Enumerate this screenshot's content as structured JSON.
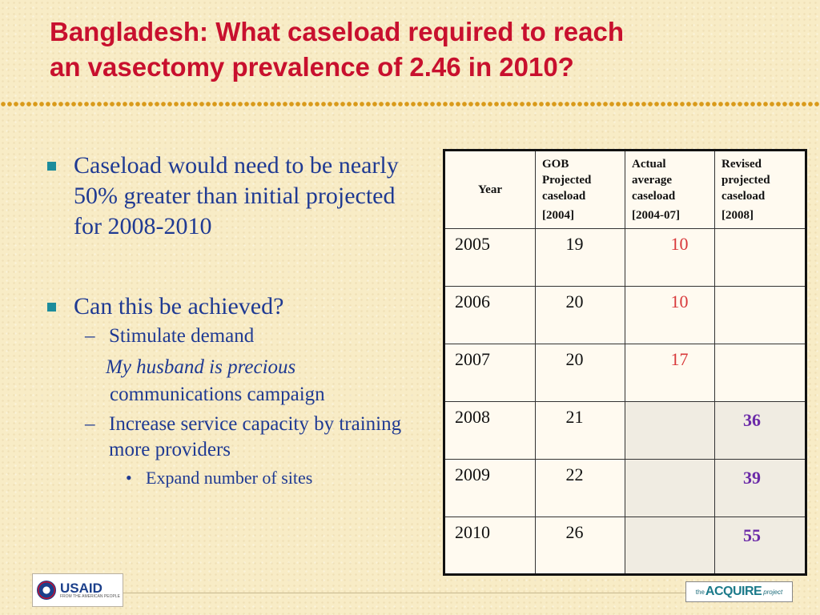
{
  "slide": {
    "title_line1": "Bangladesh: What caseload required to reach",
    "title_line2": "an vasectomy prevalence of 2.46 in 2010?"
  },
  "bullets": {
    "b1": "Caseload would need to be nearly 50% greater than initial projected for 2008-2010",
    "b2": "Can this be achieved?",
    "b2_sub1": "Stimulate demand",
    "b2_sub1_italic": "My husband is precious",
    "b2_sub1_rest": "communications campaign",
    "b2_sub2": "Increase service capacity by training more providers",
    "b2_sub2_sub": "Expand number of sites",
    "dash_glyph": "–",
    "dot_glyph": "•"
  },
  "table": {
    "headers": {
      "year": "Year",
      "gob": "GOB Projected caseload",
      "gob_sub": "[2004]",
      "actual": "Actual average caseload",
      "actual_sub": "[2004-07]",
      "revised": "Revised projected caseload",
      "revised_sub": "[2008]"
    },
    "rows": [
      {
        "year": "2005",
        "gob": "19",
        "actual": "10",
        "revised": ""
      },
      {
        "year": "2006",
        "gob": "20",
        "actual": "10",
        "revised": ""
      },
      {
        "year": "2007",
        "gob": "20",
        "actual": "17",
        "revised": ""
      },
      {
        "year": "2008",
        "gob": "21",
        "actual": "",
        "revised": "36"
      },
      {
        "year": "2009",
        "gob": "22",
        "actual": "",
        "revised": "39"
      },
      {
        "year": "2010",
        "gob": "26",
        "actual": "",
        "revised": "55"
      }
    ]
  },
  "logos": {
    "usaid": "USAID",
    "usaid_sub": "FROM THE AMERICAN PEOPLE",
    "acquire_the": "the",
    "acquire_main": "ACQUIRE",
    "acquire_project": "project"
  },
  "colors": {
    "title": "#c8102e",
    "body_text": "#1f3a93",
    "bullet_square": "#1c8c9c",
    "actual_values": "#d8383a",
    "revised_values": "#6b2aa8",
    "dot_border": "#d99a1a",
    "background": "#f8ecc6"
  }
}
